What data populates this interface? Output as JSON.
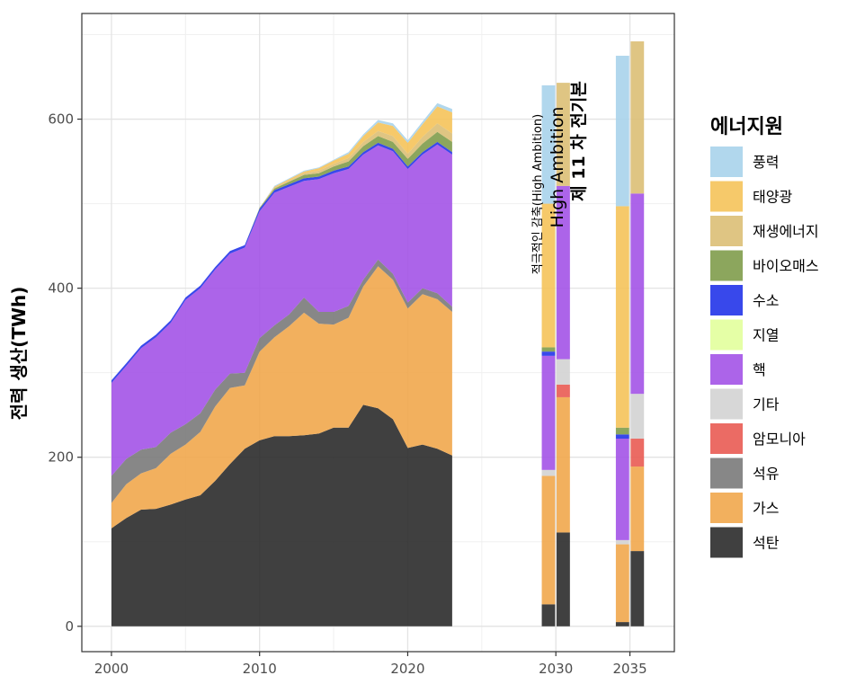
{
  "chart_data": {
    "type": "area",
    "title": "",
    "xlabel": "",
    "ylabel": "전력 생산(TWh)",
    "xlim": [
      1998,
      2038
    ],
    "ylim": [
      -30,
      725
    ],
    "x_ticks": [
      2000,
      2010,
      2020,
      2030,
      2035
    ],
    "x_tick_labels": [
      "2000",
      "2010",
      "2020",
      "2030",
      "2035"
    ],
    "y_ticks": [
      0,
      200,
      400,
      600
    ],
    "y_tick_labels": [
      "0",
      "200",
      "400",
      "600"
    ],
    "grid": true,
    "legend": {
      "title": "에너지원",
      "placement": "right"
    },
    "colors": {
      "풍력": "#a6d2ea",
      "태양광": "#f5c255",
      "재생에너지": "#dbbd72",
      "바이오매스": "#7c9a47",
      "수소": "#1d2fe8",
      "지열": "#e1ff9a",
      "핵": "#a04ee6",
      "기타": "#d2d2d2",
      "암모니아": "#e8574f",
      "석유": "#767676",
      "가스": "#f0a548",
      "석탄": "#262626"
    },
    "stack_order": [
      "석탄",
      "가스",
      "석유",
      "암모니아",
      "기타",
      "핵",
      "지열",
      "수소",
      "바이오매스",
      "재생에너지",
      "태양광",
      "풍력"
    ],
    "legend_order": [
      "풍력",
      "태양광",
      "재생에너지",
      "바이오매스",
      "수소",
      "지열",
      "핵",
      "기타",
      "암모니아",
      "석유",
      "가스",
      "석탄"
    ],
    "historical": {
      "x": [
        2000,
        2001,
        2002,
        2003,
        2004,
        2005,
        2006,
        2007,
        2008,
        2009,
        2010,
        2011,
        2012,
        2013,
        2014,
        2015,
        2016,
        2017,
        2018,
        2019,
        2020,
        2021,
        2022,
        2023
      ],
      "series": [
        {
          "name": "석탄",
          "values": [
            116,
            128,
            138,
            139,
            144,
            150,
            155,
            172,
            192,
            210,
            220,
            225,
            225,
            226,
            228,
            235,
            235,
            262,
            258,
            245,
            211,
            215,
            210,
            202
          ]
        },
        {
          "name": "가스",
          "values": [
            30,
            40,
            43,
            48,
            60,
            65,
            75,
            88,
            90,
            75,
            105,
            117,
            130,
            145,
            130,
            122,
            130,
            140,
            168,
            165,
            165,
            178,
            177,
            170
          ]
        },
        {
          "name": "석유",
          "values": [
            32,
            30,
            28,
            25,
            25,
            24,
            22,
            20,
            17,
            15,
            16,
            14,
            14,
            18,
            14,
            15,
            14,
            8,
            8,
            7,
            7,
            7,
            7,
            6
          ]
        },
        {
          "name": "핵",
          "values": [
            110,
            110,
            120,
            130,
            130,
            147,
            148,
            142,
            142,
            148,
            150,
            157,
            151,
            138,
            157,
            164,
            162,
            148,
            135,
            145,
            158,
            158,
            176,
            180
          ]
        },
        {
          "name": "수소",
          "values": [
            3,
            3,
            3,
            3,
            3,
            3,
            3,
            3,
            3,
            3,
            3,
            3,
            3,
            3,
            3,
            3,
            3,
            3,
            3,
            3,
            3,
            3,
            3,
            3
          ]
        },
        {
          "name": "바이오매스",
          "values": [
            0,
            0,
            0,
            0,
            0,
            0,
            0,
            0,
            0,
            0,
            1,
            2,
            3,
            4,
            4,
            5,
            6,
            7,
            8,
            8,
            9,
            10,
            12,
            12
          ]
        },
        {
          "name": "재생에너지",
          "values": [
            0,
            0,
            0,
            0,
            0,
            0,
            0,
            0,
            0,
            0,
            0,
            1,
            1,
            2,
            3,
            3,
            4,
            5,
            6,
            7,
            6,
            8,
            10,
            10
          ]
        },
        {
          "name": "태양광",
          "values": [
            0,
            0,
            0,
            0,
            0,
            0,
            0,
            0,
            0,
            0,
            0,
            1,
            2,
            2,
            3,
            4,
            5,
            7,
            10,
            12,
            13,
            15,
            20,
            25
          ]
        },
        {
          "name": "풍력",
          "values": [
            0,
            0,
            0,
            0,
            0,
            0,
            0,
            0,
            0,
            0,
            0,
            1,
            1,
            1,
            1,
            1,
            2,
            2,
            3,
            3,
            3,
            3,
            4,
            4
          ]
        }
      ]
    },
    "scenarios": [
      {
        "label_lines": [
          "적극적인 감축(High Ambition)",
          "High Ambition"
        ],
        "bars": [
          {
            "year": 2030,
            "segments": [
              {
                "name": "석탄",
                "value": 26
              },
              {
                "name": "가스",
                "value": 152
              },
              {
                "name": "기타",
                "value": 7
              },
              {
                "name": "핵",
                "value": 135
              },
              {
                "name": "수소",
                "value": 5
              },
              {
                "name": "바이오매스",
                "value": 5
              },
              {
                "name": "태양광",
                "value": 170
              },
              {
                "name": "풍력",
                "value": 140
              }
            ]
          },
          {
            "year": 2035,
            "segments": [
              {
                "name": "석탄",
                "value": 5
              },
              {
                "name": "가스",
                "value": 92
              },
              {
                "name": "기타",
                "value": 5
              },
              {
                "name": "핵",
                "value": 120
              },
              {
                "name": "수소",
                "value": 5
              },
              {
                "name": "바이오매스",
                "value": 8
              },
              {
                "name": "태양광",
                "value": 262
              },
              {
                "name": "풍력",
                "value": 178
              }
            ]
          }
        ]
      },
      {
        "label_lines": [
          "제 11 차 전기본"
        ],
        "bars": [
          {
            "year": 2030,
            "segments": [
              {
                "name": "석탄",
                "value": 111
              },
              {
                "name": "가스",
                "value": 160
              },
              {
                "name": "암모니아",
                "value": 15
              },
              {
                "name": "기타",
                "value": 30
              },
              {
                "name": "핵",
                "value": 205
              },
              {
                "name": "재생에너지",
                "value": 122
              }
            ]
          },
          {
            "year": 2035,
            "segments": [
              {
                "name": "석탄",
                "value": 89
              },
              {
                "name": "가스",
                "value": 100
              },
              {
                "name": "암모니아",
                "value": 33
              },
              {
                "name": "기타",
                "value": 53
              },
              {
                "name": "핵",
                "value": 237
              },
              {
                "name": "재생에너지",
                "value": 180
              }
            ]
          }
        ]
      }
    ]
  }
}
